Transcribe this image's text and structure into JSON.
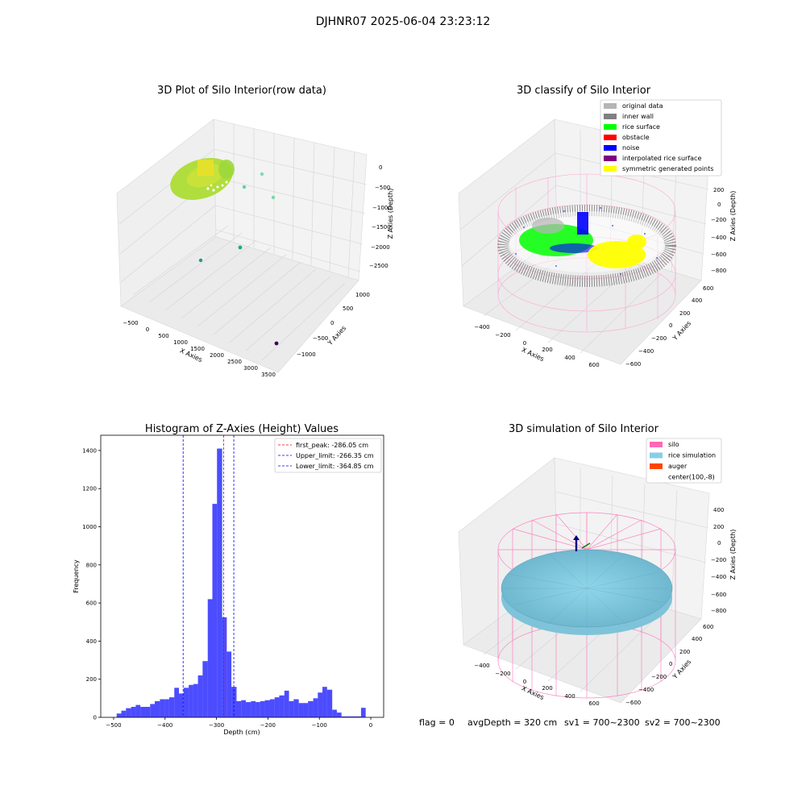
{
  "figure": {
    "suptitle": "DJHNR07 2025-06-04 23:23:12",
    "footer": {
      "flag": "flag = 0",
      "avg": "avgDepth = 320 cm",
      "sv1": "sv1 = 700~2300",
      "sv2": "sv2 = 700~2300"
    }
  },
  "chart_data": [
    {
      "type": "scatter",
      "title": "3D Plot of Silo Interior(row data)",
      "xlabel": "X Axies",
      "ylabel": "Y Axies",
      "zlabel": "Z Axies (Depth)",
      "xticks": [
        "−500",
        "0",
        "500",
        "1000",
        "1500",
        "2000",
        "2500",
        "3000",
        "3500"
      ],
      "yticks": [
        "1000",
        "500",
        "0",
        "−500",
        "−1000"
      ],
      "zticks": [
        "0",
        "−500",
        "−1000",
        "−1500",
        "−2000",
        "−2500"
      ],
      "colormap": "viridis (by depth)"
    },
    {
      "type": "scatter",
      "title": "3D classify of Silo Interior",
      "xlabel": "X Axies",
      "ylabel": "Y Axies",
      "zlabel": "Z Axies (Depth)",
      "xticks": [
        "−400",
        "−200",
        "0",
        "200",
        "400",
        "600"
      ],
      "yticks": [
        "600",
        "400",
        "200",
        "0",
        "−200",
        "−400",
        "−600"
      ],
      "zticks": [
        "200",
        "0",
        "−200",
        "−400",
        "−600",
        "−800"
      ],
      "legend_position": "top-right",
      "legend": [
        {
          "label": "original data",
          "color": "#b5b5b5"
        },
        {
          "label": "inner wall",
          "color": "#808080"
        },
        {
          "label": "rice surface",
          "color": "#00ff00"
        },
        {
          "label": "obstacle",
          "color": "#ff0000"
        },
        {
          "label": "noise",
          "color": "#0000ff"
        },
        {
          "label": "interpolated rice surface",
          "color": "#800080"
        },
        {
          "label": "symmetric generated points",
          "color": "#ffff00"
        }
      ]
    },
    {
      "type": "bar",
      "title": "Histogram of Z-Axies (Height) Values",
      "xlabel": "Depth (cm)",
      "ylabel": "Frequency",
      "xlim": [
        -525,
        25
      ],
      "ylim": [
        0,
        1480
      ],
      "xticks": [
        -500,
        -400,
        -300,
        -200,
        -100,
        0
      ],
      "xtick_labels": [
        "−500",
        "−400",
        "−300",
        "−200",
        "−100",
        "0"
      ],
      "yticks": [
        0,
        200,
        400,
        600,
        800,
        1000,
        1200,
        1400
      ],
      "yticks_labels": [
        "0",
        "200",
        "400",
        "600",
        "800",
        "1000",
        "1200",
        "1400"
      ],
      "bar_color": "#0000ff",
      "bar_opacity": 0.7,
      "bins": [
        {
          "x0": -494,
          "x1": -485,
          "v": 20
        },
        {
          "x0": -485,
          "x1": -476,
          "v": 35
        },
        {
          "x0": -476,
          "x1": -466,
          "v": 48
        },
        {
          "x0": -466,
          "x1": -457,
          "v": 55
        },
        {
          "x0": -457,
          "x1": -448,
          "v": 65
        },
        {
          "x0": -448,
          "x1": -438,
          "v": 55
        },
        {
          "x0": -438,
          "x1": -429,
          "v": 55
        },
        {
          "x0": -429,
          "x1": -420,
          "v": 70
        },
        {
          "x0": -420,
          "x1": -410,
          "v": 85
        },
        {
          "x0": -410,
          "x1": -401,
          "v": 95
        },
        {
          "x0": -401,
          "x1": -392,
          "v": 95
        },
        {
          "x0": -392,
          "x1": -382,
          "v": 105
        },
        {
          "x0": -382,
          "x1": -373,
          "v": 155
        },
        {
          "x0": -373,
          "x1": -364,
          "v": 125
        },
        {
          "x0": -364,
          "x1": -354,
          "v": 155
        },
        {
          "x0": -354,
          "x1": -345,
          "v": 170
        },
        {
          "x0": -345,
          "x1": -336,
          "v": 175
        },
        {
          "x0": -336,
          "x1": -327,
          "v": 220
        },
        {
          "x0": -327,
          "x1": -317,
          "v": 295
        },
        {
          "x0": -317,
          "x1": -308,
          "v": 620
        },
        {
          "x0": -308,
          "x1": -299,
          "v": 1120
        },
        {
          "x0": -299,
          "x1": -289,
          "v": 1410
        },
        {
          "x0": -289,
          "x1": -280,
          "v": 525
        },
        {
          "x0": -280,
          "x1": -271,
          "v": 345
        },
        {
          "x0": -271,
          "x1": -261,
          "v": 160
        },
        {
          "x0": -261,
          "x1": -252,
          "v": 85
        },
        {
          "x0": -252,
          "x1": -243,
          "v": 90
        },
        {
          "x0": -243,
          "x1": -233,
          "v": 80
        },
        {
          "x0": -233,
          "x1": -224,
          "v": 85
        },
        {
          "x0": -224,
          "x1": -215,
          "v": 80
        },
        {
          "x0": -215,
          "x1": -206,
          "v": 85
        },
        {
          "x0": -206,
          "x1": -196,
          "v": 90
        },
        {
          "x0": -196,
          "x1": -187,
          "v": 95
        },
        {
          "x0": -187,
          "x1": -178,
          "v": 105
        },
        {
          "x0": -178,
          "x1": -168,
          "v": 115
        },
        {
          "x0": -168,
          "x1": -159,
          "v": 140
        },
        {
          "x0": -159,
          "x1": -150,
          "v": 85
        },
        {
          "x0": -150,
          "x1": -140,
          "v": 95
        },
        {
          "x0": -140,
          "x1": -131,
          "v": 75
        },
        {
          "x0": -131,
          "x1": -122,
          "v": 75
        },
        {
          "x0": -122,
          "x1": -112,
          "v": 85
        },
        {
          "x0": -112,
          "x1": -103,
          "v": 100
        },
        {
          "x0": -103,
          "x1": -94,
          "v": 130
        },
        {
          "x0": -94,
          "x1": -85,
          "v": 160
        },
        {
          "x0": -85,
          "x1": -75,
          "v": 145
        },
        {
          "x0": -75,
          "x1": -66,
          "v": 40
        },
        {
          "x0": -66,
          "x1": -57,
          "v": 25
        },
        {
          "x0": -57,
          "x1": -47,
          "v": 5
        },
        {
          "x0": -47,
          "x1": -38,
          "v": 5
        },
        {
          "x0": -38,
          "x1": -29,
          "v": 5
        },
        {
          "x0": -29,
          "x1": -19,
          "v": 5
        },
        {
          "x0": -19,
          "x1": -10,
          "v": 50
        }
      ],
      "vlines": [
        {
          "x": -286.05,
          "color": "#ff0000",
          "label": "first_peak: -286.05 cm"
        },
        {
          "x": -266.35,
          "color": "#0000ff",
          "label": "Upper_limit: -266.35 cm"
        },
        {
          "x": -364.85,
          "color": "#0000ff",
          "label": "Lower_limit: -364.85 cm"
        }
      ],
      "legend_position": "top-right"
    },
    {
      "type": "scatter",
      "title": "3D simulation of Silo Interior",
      "xlabel": "X Axies",
      "ylabel": "Y Axies",
      "zlabel": "Z Axies (Depth)",
      "xticks": [
        "−400",
        "−200",
        "0",
        "200",
        "400",
        "600"
      ],
      "yticks": [
        "600",
        "400",
        "200",
        "0",
        "−200",
        "−400",
        "−600"
      ],
      "zticks": [
        "400",
        "200",
        "0",
        "−200",
        "−400",
        "−600",
        "−800"
      ],
      "legend_position": "top-right",
      "legend": [
        {
          "label": "silo",
          "color": "#ff69b4"
        },
        {
          "label": "rice simulation",
          "color": "#87ceeb"
        },
        {
          "label": "auger",
          "color": "#ff4500"
        },
        {
          "label": "center(100,-8)",
          "color": "#ffffff"
        }
      ]
    }
  ]
}
